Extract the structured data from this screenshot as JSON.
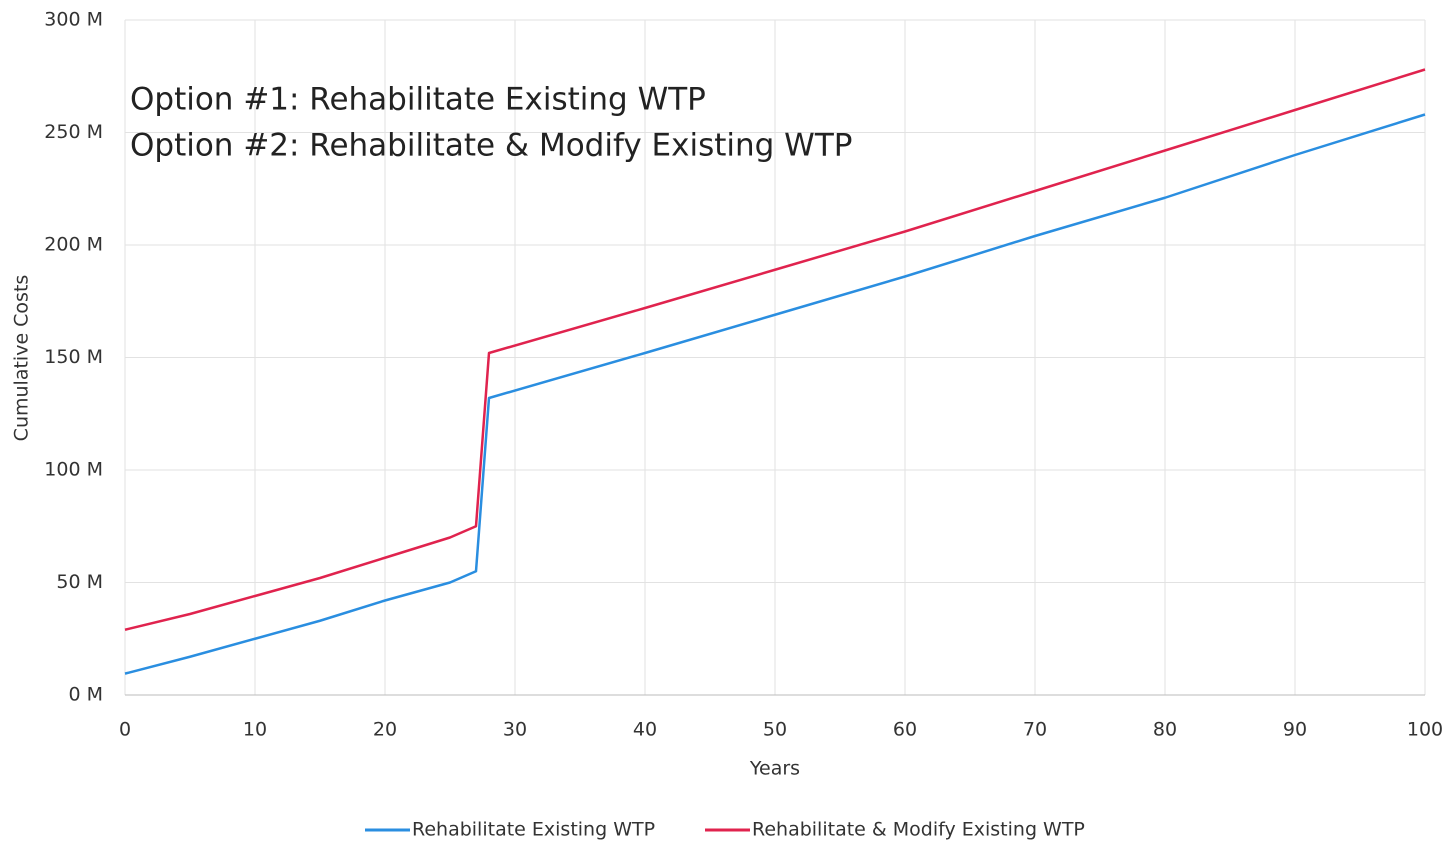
{
  "chart_data": {
    "type": "line",
    "annotations": [
      "Option #1: Rehabilitate Existing WTP",
      "Option #2: Rehabilitate & Modify Existing WTP"
    ],
    "xlabel": "Years",
    "ylabel": "Cumulative Costs",
    "x": [
      0,
      5,
      10,
      15,
      20,
      25,
      27,
      28,
      40,
      50,
      60,
      70,
      80,
      90,
      100
    ],
    "series": [
      {
        "name": "Rehabilitate Existing WTP",
        "color": "#2a8ee0",
        "values": [
          9.5,
          17,
          25,
          33,
          42,
          50,
          55,
          132,
          152,
          169,
          186,
          204,
          221,
          240,
          258
        ]
      },
      {
        "name": "Rehabilitate & Modify Existing WTP",
        "color": "#e0234e",
        "values": [
          29,
          36,
          44,
          52,
          61,
          70,
          75,
          152,
          172,
          189,
          206,
          224,
          242,
          260,
          278
        ]
      }
    ],
    "xlim": [
      0,
      100
    ],
    "xticks": [
      0,
      10,
      20,
      30,
      40,
      50,
      60,
      70,
      80,
      90,
      100
    ],
    "ylim": [
      0,
      300
    ],
    "yticks": [
      {
        "value": 0,
        "label": "0 M"
      },
      {
        "value": 50,
        "label": "50 M"
      },
      {
        "value": 100,
        "label": "100 M"
      },
      {
        "value": 150,
        "label": "150 M"
      },
      {
        "value": 200,
        "label": "200 M"
      },
      {
        "value": 250,
        "label": "250 M"
      },
      {
        "value": 300,
        "label": "300 M"
      }
    ],
    "grid": true,
    "legend": "bottom"
  }
}
